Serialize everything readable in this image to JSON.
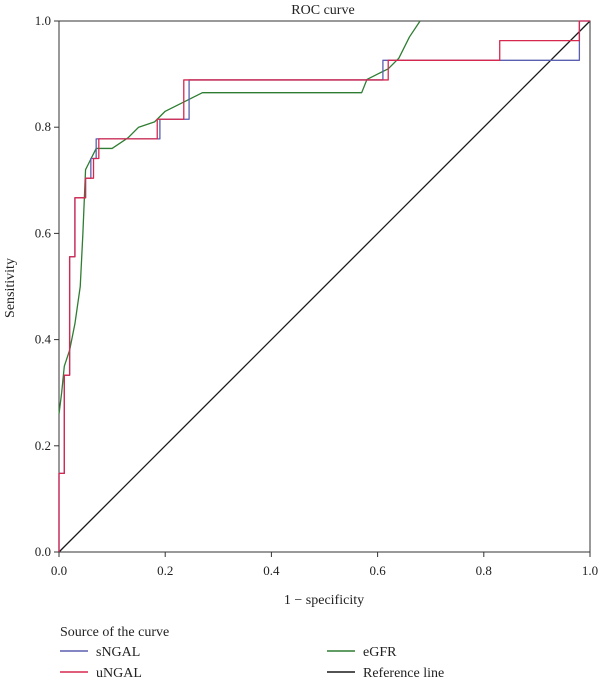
{
  "chart_data": {
    "type": "line",
    "title": "ROC curve",
    "xlabel": "1 − specificity",
    "ylabel": "Sensitivity",
    "xlim": [
      0,
      1
    ],
    "ylim": [
      0,
      1
    ],
    "x_ticks": [
      "0.0",
      "0.2",
      "0.4",
      "0.6",
      "0.8",
      "1.0"
    ],
    "y_ticks": [
      "0.0",
      "0.2",
      "0.4",
      "0.6",
      "0.8",
      "1.0"
    ],
    "grid": false,
    "legend": {
      "title": "Source of the curve",
      "placement": "bottom"
    },
    "series": [
      {
        "name": "sNGAL",
        "color": "#5b5fb0",
        "x": [
          0,
          0,
          0.01,
          0.01,
          0.02,
          0.02,
          0.03,
          0.03,
          0.05,
          0.05,
          0.06,
          0.06,
          0.07,
          0.07,
          0.08,
          0.08,
          0.19,
          0.19,
          0.245,
          0.245,
          0.61,
          0.61,
          0.98,
          0.98,
          1.0
        ],
        "y": [
          0,
          0.148,
          0.148,
          0.333,
          0.333,
          0.556,
          0.556,
          0.667,
          0.667,
          0.704,
          0.704,
          0.741,
          0.741,
          0.778,
          0.778,
          0.778,
          0.778,
          0.815,
          0.815,
          0.889,
          0.889,
          0.926,
          0.926,
          1.0,
          1.0
        ]
      },
      {
        "name": "uNGAL",
        "color": "#d6284f",
        "x": [
          0,
          0,
          0.01,
          0.01,
          0.02,
          0.02,
          0.03,
          0.03,
          0.05,
          0.05,
          0.065,
          0.065,
          0.075,
          0.075,
          0.185,
          0.185,
          0.235,
          0.235,
          0.62,
          0.62,
          0.83,
          0.83,
          0.98,
          0.98,
          1.0
        ],
        "y": [
          0,
          0.148,
          0.148,
          0.333,
          0.333,
          0.556,
          0.556,
          0.667,
          0.667,
          0.704,
          0.704,
          0.741,
          0.741,
          0.778,
          0.778,
          0.815,
          0.815,
          0.889,
          0.889,
          0.926,
          0.926,
          0.963,
          0.963,
          1.0,
          1.0
        ]
      },
      {
        "name": "eGFR",
        "color": "#2e7d32",
        "x": [
          0,
          0.005,
          0.01,
          0.02,
          0.03,
          0.04,
          0.045,
          0.05,
          0.055,
          0.07,
          0.1,
          0.13,
          0.15,
          0.18,
          0.2,
          0.24,
          0.27,
          0.57,
          0.58,
          0.6,
          0.62,
          0.64,
          0.66,
          0.68
        ],
        "y": [
          0.26,
          0.3,
          0.35,
          0.38,
          0.43,
          0.5,
          0.6,
          0.72,
          0.73,
          0.76,
          0.76,
          0.78,
          0.8,
          0.81,
          0.83,
          0.85,
          0.865,
          0.865,
          0.89,
          0.9,
          0.91,
          0.93,
          0.97,
          1.0
        ]
      },
      {
        "name": "Reference line",
        "color": "#1a1a1a",
        "x": [
          0,
          1
        ],
        "y": [
          0,
          1
        ]
      }
    ]
  }
}
